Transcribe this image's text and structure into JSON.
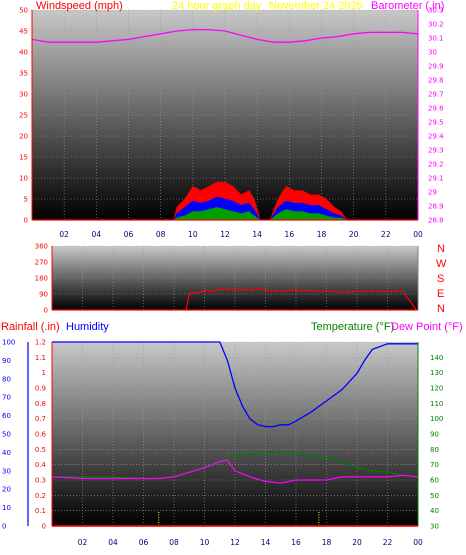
{
  "header": {
    "windspeed_label": "Windspeed (mph)",
    "period_label": "24 hour graph day",
    "date_label": "November 24 2025",
    "barometer_label": "Barometer (.in)"
  },
  "bottom_header": {
    "rainfall_label": "Rainfall (.in)",
    "humidity_label": "Humidity",
    "temperature_label": "Temperature (°F)",
    "dewpoint_label": "Dew Point (°F)"
  },
  "direction_labels": [
    "N",
    "W",
    "S",
    "E",
    "N"
  ],
  "colors": {
    "windspeed": "#ff0000",
    "wind_mid": "#0000ff",
    "wind_low": "#00a000",
    "barometer": "#ff00ff",
    "rainfall": "#ff0000",
    "humidity": "#0000ff",
    "temperature": "#008000",
    "dewpoint": "#ff00ff",
    "background_gradient_top": "#c8c8c8",
    "background_gradient_bottom": "#000000",
    "period_text": "#ffff00"
  },
  "chart_data": [
    {
      "type": "area",
      "name": "wind_and_barometer",
      "x_ticks": [
        "02",
        "04",
        "06",
        "08",
        "10",
        "12",
        "14",
        "16",
        "18",
        "20",
        "22",
        "00"
      ],
      "xlim": [
        0,
        24
      ],
      "ylabel": "Windspeed (mph)",
      "ylim": [
        0,
        50
      ],
      "y_ticks": [
        0,
        5,
        10,
        15,
        20,
        25,
        30,
        35,
        40,
        45,
        50
      ],
      "y2label": "Barometer (.in)",
      "y2lim": [
        28.8,
        30.3
      ],
      "y2_ticks": [
        "28.8",
        "28.9",
        "29",
        "29.1",
        "29.2",
        "29.3",
        "29.4",
        "29.5",
        "29.6",
        "29.7",
        "29.8",
        "29.9",
        "30",
        "30.1",
        "30.2",
        "30.3"
      ],
      "series": [
        {
          "name": "Barometer (.in)",
          "axis": "right",
          "x": [
            0,
            1,
            2,
            3,
            4,
            5,
            6,
            7,
            8,
            9,
            10,
            11,
            12,
            13,
            14,
            15,
            16,
            17,
            18,
            19,
            20,
            21,
            22,
            23,
            24
          ],
          "values": [
            30.09,
            30.07,
            30.07,
            30.07,
            30.07,
            30.08,
            30.09,
            30.11,
            30.13,
            30.15,
            30.16,
            30.16,
            30.15,
            30.12,
            30.09,
            30.07,
            30.07,
            30.08,
            30.1,
            30.11,
            30.13,
            30.14,
            30.14,
            30.14,
            30.13
          ]
        },
        {
          "name": "Wind gust",
          "axis": "left",
          "x": [
            0,
            8.8,
            9.0,
            9.5,
            10.0,
            10.5,
            11.0,
            11.5,
            12.0,
            12.5,
            13.0,
            13.5,
            13.8,
            14.2,
            14.8,
            15.3,
            15.8,
            16.3,
            16.8,
            17.3,
            17.8,
            18.3,
            18.8,
            19.2,
            19.6,
            20,
            24
          ],
          "values": [
            0,
            0,
            3,
            5,
            8,
            7,
            8,
            9,
            9,
            8,
            6,
            7,
            5,
            0,
            0,
            5,
            8,
            7,
            7,
            6,
            6,
            5,
            3,
            2,
            0,
            0,
            0
          ]
        },
        {
          "name": "Wind average",
          "axis": "left",
          "x": [
            0,
            8.8,
            9.0,
            9.5,
            10.0,
            10.5,
            11.0,
            11.5,
            12.0,
            12.5,
            13.0,
            13.5,
            13.8,
            14.2,
            14.8,
            15.3,
            15.8,
            16.3,
            16.8,
            17.3,
            17.8,
            18.3,
            18.8,
            19.2,
            19.6,
            20,
            24
          ],
          "values": [
            0,
            0,
            1.5,
            3,
            4.5,
            4,
            4.5,
            5.5,
            5,
            4.5,
            3.5,
            4,
            2.5,
            0,
            0,
            3,
            4.5,
            4,
            4,
            3.5,
            3.5,
            2.5,
            1.5,
            1,
            0,
            0,
            0
          ]
        },
        {
          "name": "Wind low",
          "axis": "left",
          "x": [
            0,
            8.8,
            9.0,
            9.5,
            10.0,
            10.5,
            11.0,
            11.5,
            12.0,
            12.5,
            13.0,
            13.5,
            13.8,
            14.2,
            14.8,
            15.3,
            15.8,
            16.3,
            16.8,
            17.3,
            17.8,
            18.3,
            18.8,
            19.2,
            19.6,
            20,
            24
          ],
          "values": [
            0,
            0,
            0.5,
            1,
            2,
            2,
            2.5,
            3,
            2.5,
            2,
            1.5,
            2,
            1,
            0,
            0,
            1.5,
            2.5,
            2,
            2,
            1.5,
            1.5,
            1,
            0.5,
            0.5,
            0,
            0,
            0
          ]
        }
      ]
    },
    {
      "type": "line",
      "name": "wind_direction",
      "x_ticks": [],
      "xlim": [
        0,
        24
      ],
      "ylim": [
        0,
        360
      ],
      "y_ticks": [
        0,
        90,
        180,
        270,
        360
      ],
      "series": [
        {
          "name": "Wind direction",
          "x": [
            8.8,
            9.0,
            9.8,
            10.0,
            10.5,
            11.0,
            11.5,
            12.0,
            12.5,
            13.0,
            13.5,
            14.0,
            14.5,
            15.0,
            15.5,
            16.0,
            16.5,
            17.0,
            17.5,
            18.0,
            18.5,
            19.0,
            19.5,
            20.0,
            21,
            22,
            23,
            23.9
          ],
          "values": [
            0,
            95,
            100,
            110,
            105,
            115,
            120,
            110,
            115,
            112,
            120,
            110,
            108,
            105,
            110,
            112,
            108,
            110,
            105,
            108,
            104,
            100,
            100,
            105,
            105,
            105,
            105,
            0
          ]
        }
      ]
    },
    {
      "type": "line",
      "name": "rain_humidity_temperature",
      "x_ticks": [
        "02",
        "04",
        "06",
        "08",
        "10",
        "12",
        "14",
        "16",
        "18",
        "20",
        "22",
        "00"
      ],
      "xlim": [
        0,
        24
      ],
      "ylabel": "Rainfall (.in)",
      "ylim": [
        0,
        1.2
      ],
      "y_ticks": [
        "0",
        "0.1",
        "0.2",
        "0.3",
        "0.4",
        "0.5",
        "0.6",
        "0.7",
        "0.8",
        "0.9",
        "1",
        "1.1",
        "1.2"
      ],
      "humidity_ticks": [
        0,
        10,
        20,
        30,
        40,
        50,
        60,
        70,
        80,
        90,
        100
      ],
      "humidity_lim": [
        0,
        100
      ],
      "y2label": "Temperature (°F)",
      "y2lim": [
        30,
        150
      ],
      "y2_ticks": [
        30,
        40,
        50,
        60,
        70,
        80,
        90,
        100,
        110,
        120,
        130,
        140
      ],
      "series": [
        {
          "name": "Humidity",
          "axis": "humidity",
          "x": [
            0,
            2,
            4,
            6,
            8,
            10,
            11,
            11.5,
            12,
            12.5,
            13,
            13.5,
            14,
            14.5,
            15,
            15.5,
            16,
            17,
            18,
            19,
            20,
            20.5,
            21,
            22,
            23,
            24
          ],
          "values": [
            100,
            100,
            100,
            100,
            100,
            100,
            100,
            90,
            75,
            65,
            58,
            55,
            54,
            54,
            55,
            55,
            57,
            62,
            68,
            74,
            83,
            90,
            96,
            99,
            99,
            99
          ]
        },
        {
          "name": "Temperature (°F)",
          "axis": "right",
          "x": [
            0,
            2,
            4,
            6,
            7,
            8,
            9,
            10,
            11,
            12,
            13,
            14,
            15,
            16,
            17,
            18,
            19,
            20,
            21,
            22,
            23,
            24
          ],
          "values": [
            62,
            62,
            62,
            61,
            61,
            62,
            65,
            68,
            72,
            76,
            77,
            78,
            78,
            78,
            76,
            74,
            72,
            68,
            66,
            65,
            63,
            62
          ]
        },
        {
          "name": "Dew Point (°F)",
          "axis": "right",
          "x": [
            0,
            2,
            4,
            6,
            7,
            8,
            9,
            10,
            11,
            11.5,
            12,
            13,
            14,
            15,
            16,
            17,
            18,
            19,
            20,
            21,
            22,
            23,
            24
          ],
          "values": [
            62,
            61,
            61,
            61,
            61,
            62,
            65,
            68,
            72,
            73,
            66,
            62,
            59,
            58,
            60,
            60,
            60,
            62,
            62,
            62,
            62,
            63,
            62
          ]
        },
        {
          "name": "Rainfall (.in)",
          "axis": "left",
          "x": [
            0,
            24
          ],
          "values": [
            0,
            0
          ]
        }
      ]
    }
  ]
}
